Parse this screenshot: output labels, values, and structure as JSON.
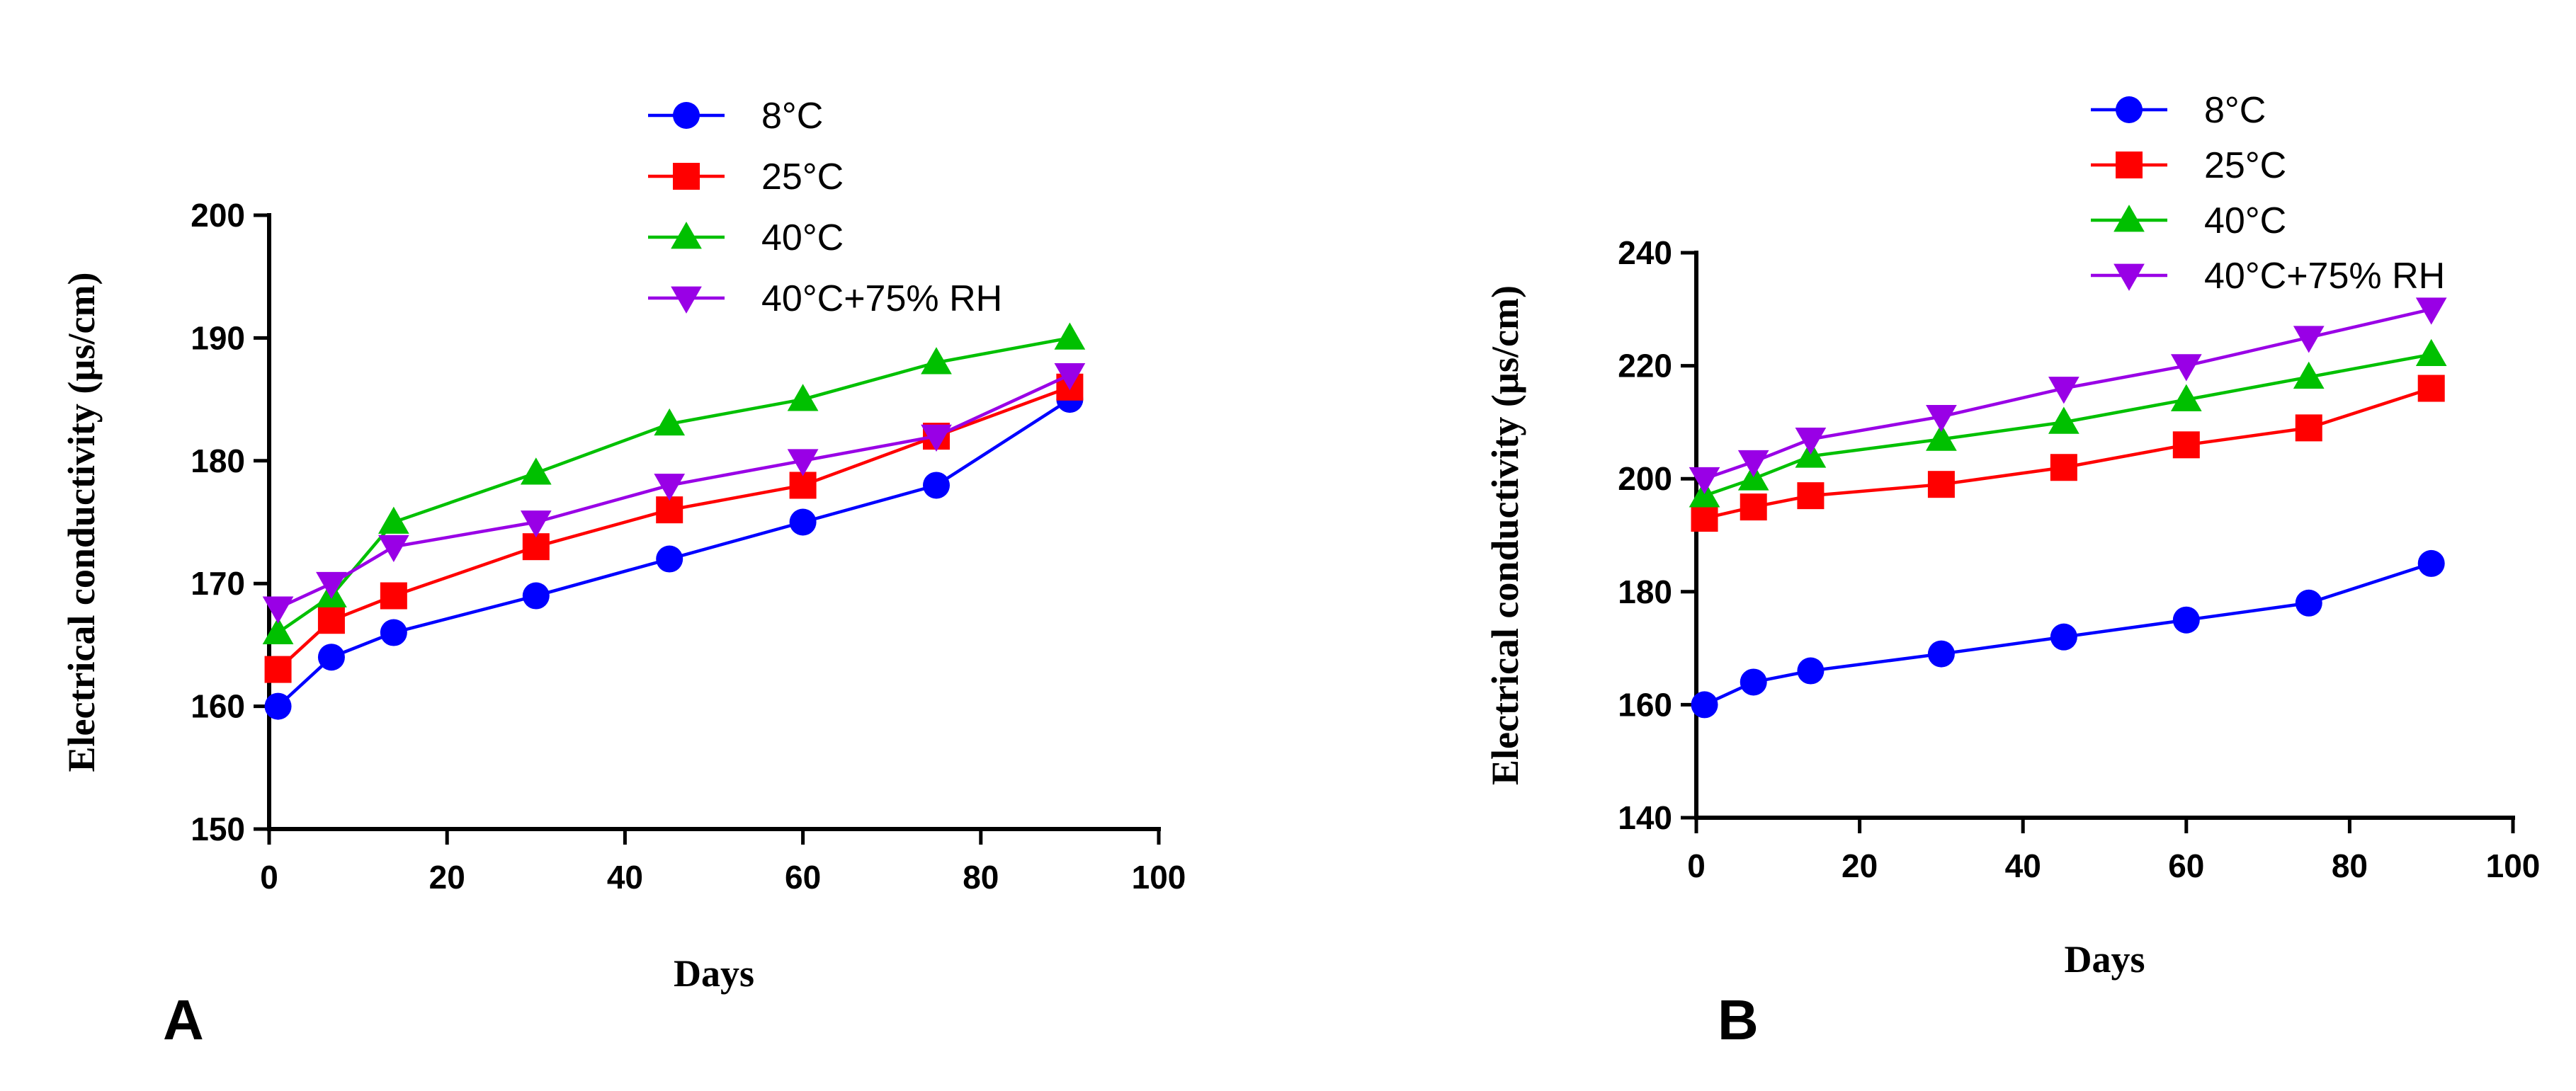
{
  "chart_data": [
    {
      "type": "line",
      "panel_label": "A",
      "xlabel": "Days",
      "ylabel": "Electrical conductivity (µs/cm)",
      "xlim": [
        0,
        100
      ],
      "ylim": [
        150,
        200
      ],
      "xticks": [
        "0",
        "20",
        "40",
        "60",
        "80",
        "100"
      ],
      "yticks": [
        "150",
        "160",
        "170",
        "180",
        "190",
        "200"
      ],
      "grid": false,
      "legend_position": "top",
      "x": [
        1,
        7,
        14,
        30,
        45,
        60,
        75,
        90
      ],
      "series": [
        {
          "name": "8°C",
          "color": "#0000ff",
          "marker": "circle",
          "values": [
            160,
            164,
            166,
            169,
            172,
            175,
            178,
            185
          ]
        },
        {
          "name": "25°C",
          "color": "#ff0000",
          "marker": "square",
          "values": [
            163,
            167,
            169,
            173,
            176,
            178,
            182,
            186
          ]
        },
        {
          "name": "40°C",
          "color": "#00c000",
          "marker": "triangle-up",
          "values": [
            166,
            169,
            175,
            179,
            183,
            185,
            188,
            190
          ]
        },
        {
          "name": "40°C+75% RH",
          "color": "#9900e6",
          "marker": "triangle-down",
          "values": [
            168,
            170,
            173,
            175,
            178,
            180,
            182,
            187
          ]
        }
      ]
    },
    {
      "type": "line",
      "panel_label": "B",
      "xlabel": "Days",
      "ylabel": "Electrical conductivity (µs/cm)",
      "xlim": [
        0,
        100
      ],
      "ylim": [
        140,
        240
      ],
      "xticks": [
        "0",
        "20",
        "40",
        "60",
        "80",
        "100"
      ],
      "yticks": [
        "140",
        "160",
        "180",
        "200",
        "220",
        "240"
      ],
      "grid": false,
      "legend_position": "top",
      "x": [
        1,
        7,
        14,
        30,
        45,
        60,
        75,
        90
      ],
      "series": [
        {
          "name": "8°C",
          "color": "#0000ff",
          "marker": "circle",
          "values": [
            160,
            164,
            166,
            169,
            172,
            175,
            178,
            185
          ]
        },
        {
          "name": "25°C",
          "color": "#ff0000",
          "marker": "square",
          "values": [
            193,
            195,
            197,
            199,
            202,
            206,
            209,
            216
          ]
        },
        {
          "name": "40°C",
          "color": "#00c000",
          "marker": "triangle-up",
          "values": [
            197,
            200,
            204,
            207,
            210,
            214,
            218,
            222
          ]
        },
        {
          "name": "40°C+75% RH",
          "color": "#9900e6",
          "marker": "triangle-down",
          "values": [
            200,
            203,
            207,
            211,
            216,
            220,
            225,
            230
          ]
        }
      ]
    }
  ]
}
